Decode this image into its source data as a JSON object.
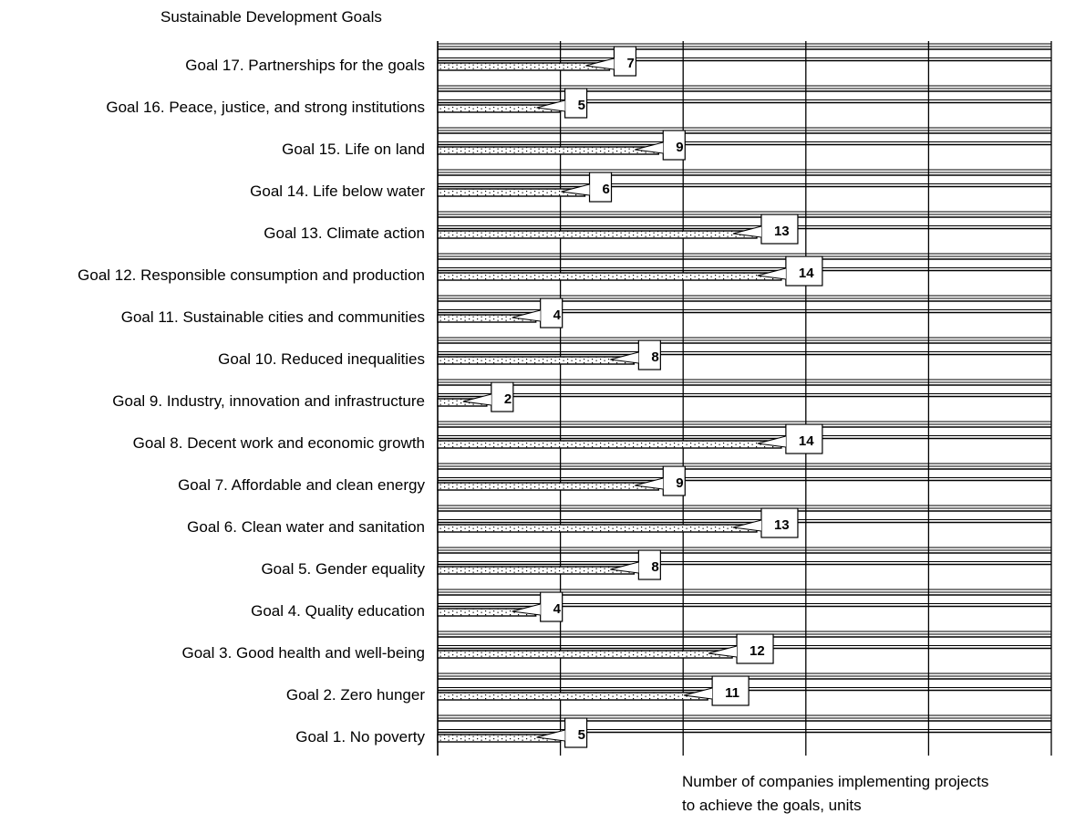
{
  "chart_data": {
    "type": "bar",
    "orientation": "horizontal",
    "title": "",
    "ylabel": "Sustainable Development Goals",
    "xlabel_lines": [
      "Number of companies implementing projects",
      "to achieve the goals, units"
    ],
    "xlim": [
      0,
      25
    ],
    "x_gridline_step": 5,
    "grid": true,
    "categories": [
      "Goal 17. Partnerships for the goals",
      "Goal 16. Peace, justice, and strong institutions",
      "Goal 15. Life on land",
      "Goal 14. Life below water",
      "Goal 13. Climate action",
      "Goal 12. Responsible consumption and production",
      "Goal 11. Sustainable cities and communities",
      "Goal 10. Reduced inequalities",
      "Goal 9. Industry, innovation and infrastructure",
      "Goal 8. Decent work and economic growth",
      "Goal 7. Affordable and clean energy",
      "Goal 6. Clean water and sanitation",
      "Goal 5. Gender equality",
      "Goal 4. Quality education",
      "Goal 3. Good health and well-being",
      "Goal 2. Zero hunger",
      "Goal 1. No poverty"
    ],
    "values": [
      7,
      5,
      9,
      6,
      13,
      14,
      4,
      8,
      2,
      14,
      9,
      13,
      8,
      4,
      12,
      11,
      5
    ],
    "data_labels": [
      "7",
      "5",
      "9",
      "6",
      "13",
      "14",
      "4",
      "8",
      "2",
      "14",
      "9",
      "13",
      "8",
      "4",
      "12",
      "11",
      "5"
    ],
    "bar_fill": "#ffffff",
    "bar_pattern": "dotted",
    "line_color": "#000000"
  }
}
